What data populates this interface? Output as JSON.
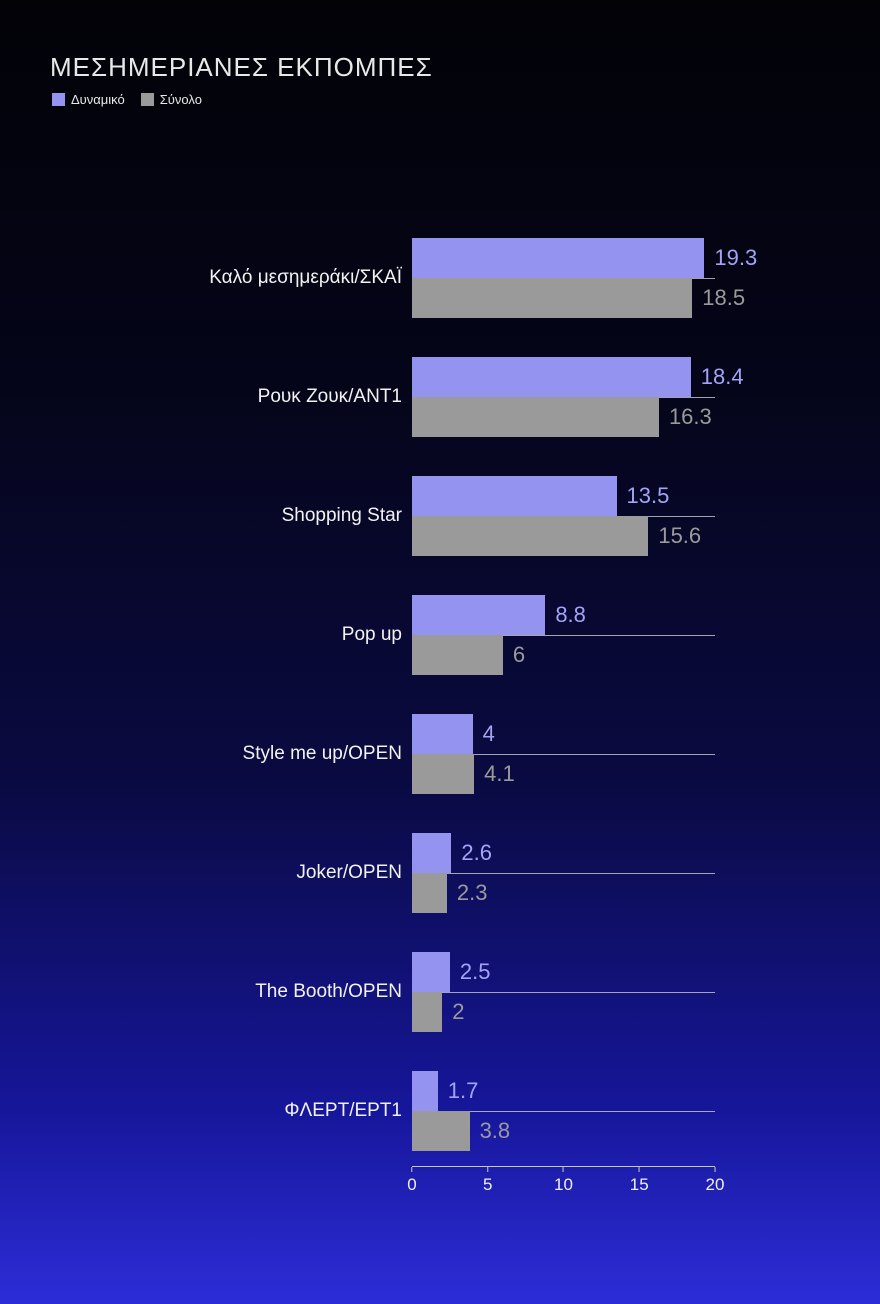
{
  "chart": {
    "title": "ΜΕΣΗΜΕΡΙΑΝΕΣ ΕΚΠΟΜΠΕΣ"
  },
  "chart_data": {
    "type": "bar",
    "orientation": "horizontal",
    "title": "ΜΕΣΗΜΕΡΙΑΝΕΣ ΕΚΠΟΜΠΕΣ",
    "categories": [
      "Καλό μεσημεράκι/ΣΚΑΪ",
      "Ρουκ Ζουκ/ΑΝΤ1",
      "Shopping Star",
      "Pop up",
      "Style me up/OPEN",
      "Joker/OPEN",
      "The Booth/OPEN",
      "ΦΛΕΡΤ/ΕΡΤ1"
    ],
    "series": [
      {
        "name": "Δυναμικό",
        "color": "#9494f0",
        "label_color": "#a3a3f7",
        "values": [
          19.3,
          18.4,
          13.5,
          8.8,
          4,
          2.6,
          2.5,
          1.7
        ]
      },
      {
        "name": "Σύνολο",
        "color": "#9a9a9a",
        "label_color": "#9a9a9a",
        "values": [
          18.5,
          16.3,
          15.6,
          6,
          4.1,
          2.3,
          2,
          3.8
        ]
      }
    ],
    "xlabel": "",
    "ylabel": "",
    "xlim": [
      0,
      20
    ],
    "x_ticks": [
      0,
      5,
      10,
      15,
      20
    ],
    "legend_position": "top-left",
    "grid": false,
    "background": {
      "top_color": "#020207",
      "bottom_color": "#2d2dd8"
    }
  }
}
